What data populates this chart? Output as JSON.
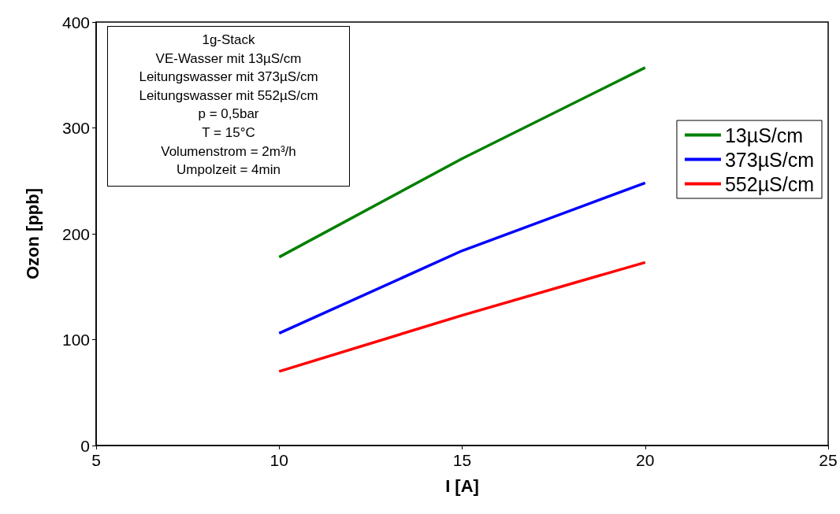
{
  "chart_data": {
    "type": "line",
    "xlabel": "I [A]",
    "ylabel": "Ozon [ppb]",
    "x": [
      10,
      15,
      20
    ],
    "series": [
      {
        "name": "13µS/cm",
        "color": "#008000",
        "values": [
          178,
          271,
          357
        ]
      },
      {
        "name": "373µS/cm",
        "color": "#0000ff",
        "values": [
          106,
          184,
          248
        ]
      },
      {
        "name": "552µS/cm",
        "color": "#ff0000",
        "values": [
          70,
          123,
          173
        ]
      }
    ],
    "xlim": [
      5,
      25
    ],
    "xticks": [
      5,
      10,
      15,
      20,
      25
    ],
    "ylim": [
      0,
      400
    ],
    "yticks": [
      0,
      100,
      200,
      300,
      400
    ],
    "grid": false,
    "legend": "right",
    "marker": "none",
    "line_style": "solid",
    "annotations": [
      "1g-Stack",
      "VE-Wasser mit 13µS/cm",
      "Leitungswasser mit 373µS/cm",
      "Leitungswasser mit 552µS/cm",
      "p = 0,5bar",
      "T = 15°C",
      "Volumenstrom = 2m³/h",
      "Umpolzeit = 4min"
    ]
  }
}
